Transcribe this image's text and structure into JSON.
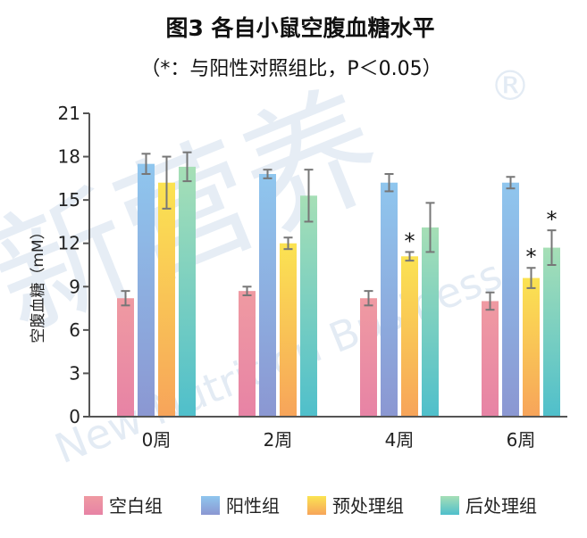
{
  "chart_data": {
    "type": "bar",
    "title": "图3 各自小鼠空腹血糖水平",
    "subtitle": "（*：与阳性对照组比，P＜0.05）",
    "xlabel": "",
    "ylabel": "空腹血糖（mM）",
    "ylim": [
      0,
      21
    ],
    "yticks": [
      0,
      3,
      6,
      9,
      12,
      15,
      18,
      21
    ],
    "categories": [
      "0周",
      "2周",
      "4周",
      "6周"
    ],
    "series": [
      {
        "name": "空白组",
        "values": [
          8.2,
          8.7,
          8.2,
          8.0
        ],
        "errors": [
          0.5,
          0.3,
          0.5,
          0.6
        ],
        "color_top": "#ef9aa2",
        "color_bottom": "#e783a5"
      },
      {
        "name": "阳性组",
        "values": [
          17.5,
          16.8,
          16.2,
          16.2
        ],
        "errors": [
          0.7,
          0.3,
          0.6,
          0.4
        ],
        "color_top": "#8fc6ee",
        "color_bottom": "#8b97d2"
      },
      {
        "name": "预处理组",
        "values": [
          16.2,
          12.0,
          11.1,
          9.6
        ],
        "errors": [
          1.8,
          0.4,
          0.3,
          0.7
        ],
        "color_top": "#fbe352",
        "color_bottom": "#f7a45a"
      },
      {
        "name": "后处理组",
        "values": [
          17.3,
          15.3,
          13.1,
          11.7
        ],
        "errors": [
          1.0,
          1.8,
          1.7,
          1.2
        ],
        "color_top": "#a6dfb6",
        "color_bottom": "#4fbfcb"
      }
    ],
    "annotations": [
      {
        "series": 2,
        "category": 2,
        "text": "*"
      },
      {
        "series": 2,
        "category": 3,
        "text": "*"
      },
      {
        "series": 3,
        "category": 3,
        "text": "*"
      }
    ],
    "grid": false,
    "legend_position": "bottom"
  },
  "watermark": {
    "main": "新营养",
    "sub": "New Nutrition Business",
    "mark": "®"
  }
}
